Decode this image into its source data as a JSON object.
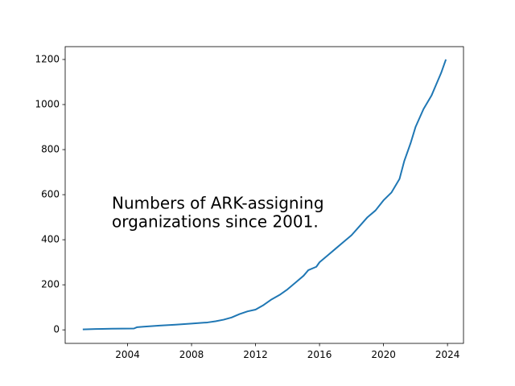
{
  "chart_data": {
    "type": "line",
    "annotation": [
      "Numbers of ARK-assigning",
      "organizations since 2001."
    ],
    "x": [
      2001.2,
      2002,
      2003,
      2004.4,
      2004.6,
      2005,
      2006,
      2007,
      2008,
      2009,
      2009.5,
      2010,
      2010.5,
      2011,
      2011.5,
      2012,
      2012.5,
      2013,
      2013.5,
      2014,
      2014.5,
      2015,
      2015.3,
      2015.8,
      2016,
      2016.5,
      2017,
      2017.5,
      2018,
      2018.5,
      2019,
      2019.5,
      2020,
      2020.5,
      2021,
      2021.3,
      2021.7,
      2022,
      2022.5,
      2023,
      2023.3,
      2023.6,
      2023.9
    ],
    "series": [
      {
        "color": "#1f77b4",
        "values": [
          2,
          4,
          5,
          6,
          12,
          14,
          19,
          23,
          28,
          33,
          38,
          45,
          55,
          70,
          82,
          90,
          110,
          135,
          155,
          180,
          210,
          240,
          265,
          280,
          300,
          330,
          360,
          390,
          420,
          460,
          500,
          530,
          575,
          610,
          670,
          750,
          830,
          900,
          980,
          1040,
          1090,
          1140,
          1200
        ]
      }
    ],
    "xlim": [
      2000.1,
      2025.0
    ],
    "ylim": [
      -60,
      1257
    ],
    "xticks": [
      2004,
      2008,
      2012,
      2016,
      2020,
      2024
    ],
    "yticks": [
      0,
      200,
      400,
      600,
      800,
      1000,
      1200
    ]
  }
}
